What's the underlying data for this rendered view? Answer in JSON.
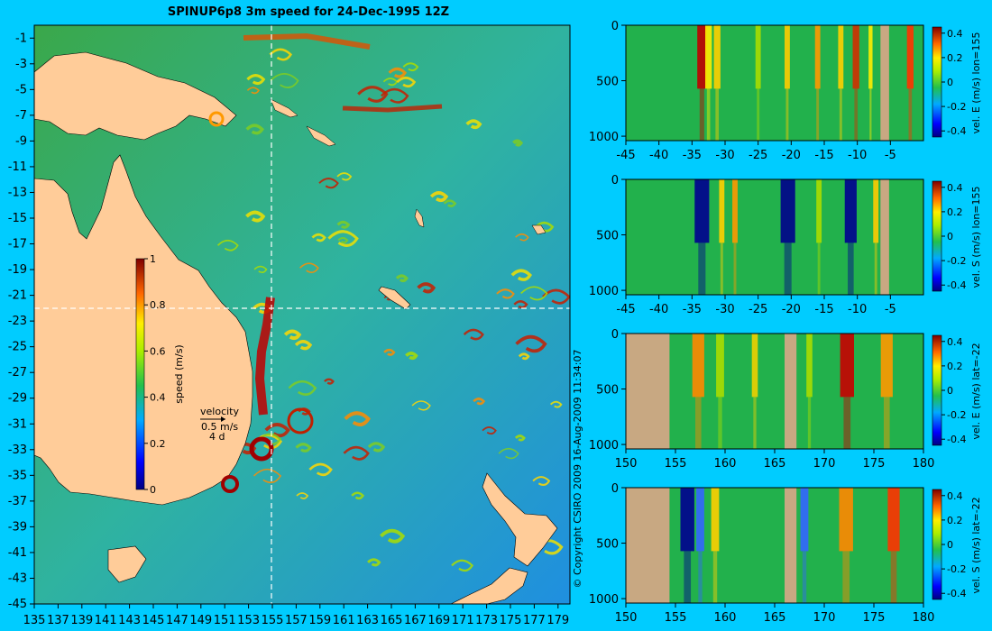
{
  "title": "SPINUP6p8 3m speed for 24-Dec-1995 12Z",
  "copyright": "© Copyright CSIRO 2009  16-Aug-2009 11:34:07",
  "colors": {
    "background": "#00ccff",
    "land": "#ffcc99",
    "sea_mid": "#22b14c",
    "fast": "#c00000",
    "slow": "#1e90ff",
    "section_land": "#c8a882"
  },
  "map": {
    "x_ticks": [
      "135",
      "137",
      "139",
      "141",
      "143",
      "145",
      "147",
      "149",
      "151",
      "153",
      "155",
      "157",
      "159",
      "161",
      "163",
      "165",
      "167",
      "169",
      "171",
      "173",
      "175",
      "177",
      "179"
    ],
    "y_ticks": [
      "-1",
      "-3",
      "-5",
      "-7",
      "-9",
      "-11",
      "-13",
      "-15",
      "-17",
      "-19",
      "-21",
      "-23",
      "-25",
      "-27",
      "-29",
      "-31",
      "-33",
      "-35",
      "-37",
      "-39",
      "-41",
      "-43",
      "-45"
    ],
    "colorbar_label": "speed (m/s)",
    "colorbar_ticks": [
      "1",
      "0.8",
      "0.6",
      "0.4",
      "0.2",
      "0"
    ],
    "velocity_key_label": "velocity",
    "velocity_key_speed": "0.5 m/s",
    "velocity_key_time": "4 d"
  },
  "panels": [
    {
      "label": "vel. E (m/s) lon=155",
      "x_ticks": [
        "-45",
        "-40",
        "-35",
        "-30",
        "-25",
        "-20",
        "-15",
        "-10",
        "-5"
      ]
    },
    {
      "label": "vel. S (m/s) lon=155",
      "x_ticks": [
        "-45",
        "-40",
        "-35",
        "-30",
        "-25",
        "-20",
        "-15",
        "-10",
        "-5"
      ]
    },
    {
      "label": "vel. E (m/s) lat=-22",
      "x_ticks": [
        "150",
        "155",
        "160",
        "165",
        "170",
        "175",
        "180"
      ]
    },
    {
      "label": "vel. S (m/s) lat=-22",
      "x_ticks": [
        "150",
        "155",
        "160",
        "165",
        "170",
        "175",
        "180"
      ]
    }
  ],
  "panel_y_ticks": [
    "0",
    "500",
    "1000"
  ],
  "panel_colorbar_ticks": [
    "0.4",
    "0.2",
    "0",
    "-0.2",
    "-0.4"
  ],
  "chart_data": [
    {
      "type": "heatmap",
      "title": "SPINUP6p8 3m speed for 24-Dec-1995 12Z",
      "xlim": [
        135,
        180
      ],
      "ylim": [
        -45,
        0
      ],
      "colorbar": {
        "label": "speed (m/s)",
        "range": [
          0,
          1
        ]
      },
      "crosshair": {
        "lon": 155,
        "lat": -22
      }
    },
    {
      "type": "heatmap",
      "label": "vel. E (m/s) lon=155",
      "xlim": [
        -45,
        0
      ],
      "ylim": [
        1000,
        0
      ],
      "colorbar_range": [
        -0.4,
        0.4
      ]
    },
    {
      "type": "heatmap",
      "label": "vel. S (m/s) lon=155",
      "xlim": [
        -45,
        0
      ],
      "ylim": [
        1000,
        0
      ],
      "colorbar_range": [
        -0.4,
        0.4
      ]
    },
    {
      "type": "heatmap",
      "label": "vel. E (m/s) lat=-22",
      "xlim": [
        150,
        180
      ],
      "ylim": [
        1000,
        0
      ],
      "colorbar_range": [
        -0.4,
        0.4
      ]
    },
    {
      "type": "heatmap",
      "label": "vel. S (m/s) lat=-22",
      "xlim": [
        150,
        180
      ],
      "ylim": [
        1000,
        0
      ],
      "colorbar_range": [
        -0.4,
        0.4
      ]
    }
  ]
}
